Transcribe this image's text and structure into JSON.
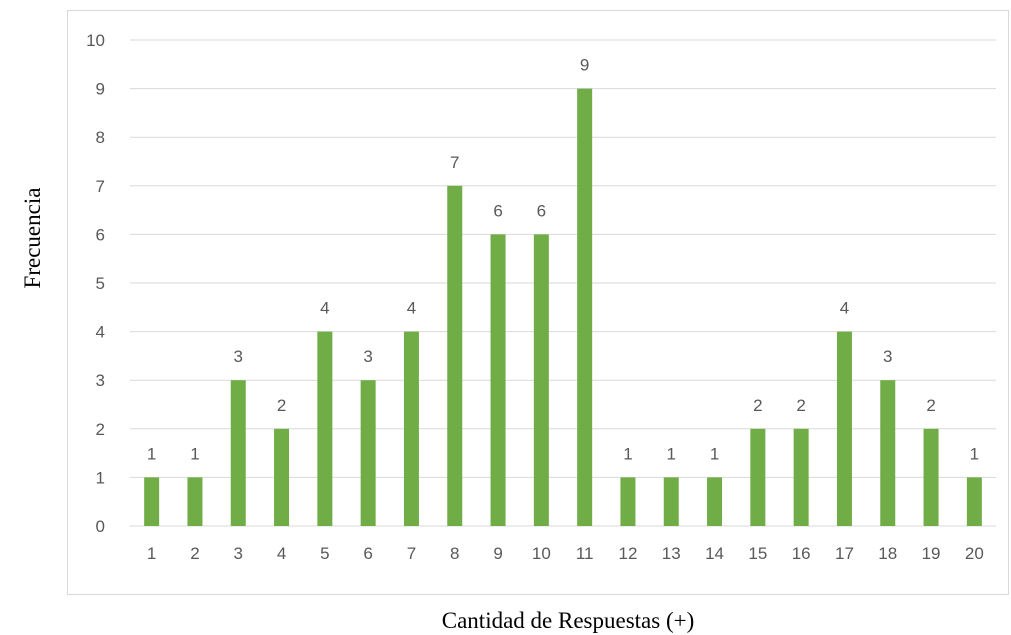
{
  "chart_data": {
    "type": "bar",
    "categories": [
      "1",
      "2",
      "3",
      "4",
      "5",
      "6",
      "7",
      "8",
      "9",
      "10",
      "11",
      "12",
      "13",
      "14",
      "15",
      "16",
      "17",
      "18",
      "19",
      "20"
    ],
    "values": [
      1,
      1,
      3,
      2,
      4,
      3,
      4,
      7,
      6,
      6,
      9,
      1,
      1,
      1,
      2,
      2,
      4,
      3,
      2,
      1
    ],
    "xlabel": "Cantidad de Respuestas (+)",
    "ylabel": "Frecuencia",
    "ylim": [
      0,
      10
    ],
    "yticks": [
      0,
      1,
      2,
      3,
      4,
      5,
      6,
      7,
      8,
      9,
      10
    ],
    "grid": true,
    "data_labels": true,
    "bar_color": "#70ad47",
    "legend": "none"
  }
}
